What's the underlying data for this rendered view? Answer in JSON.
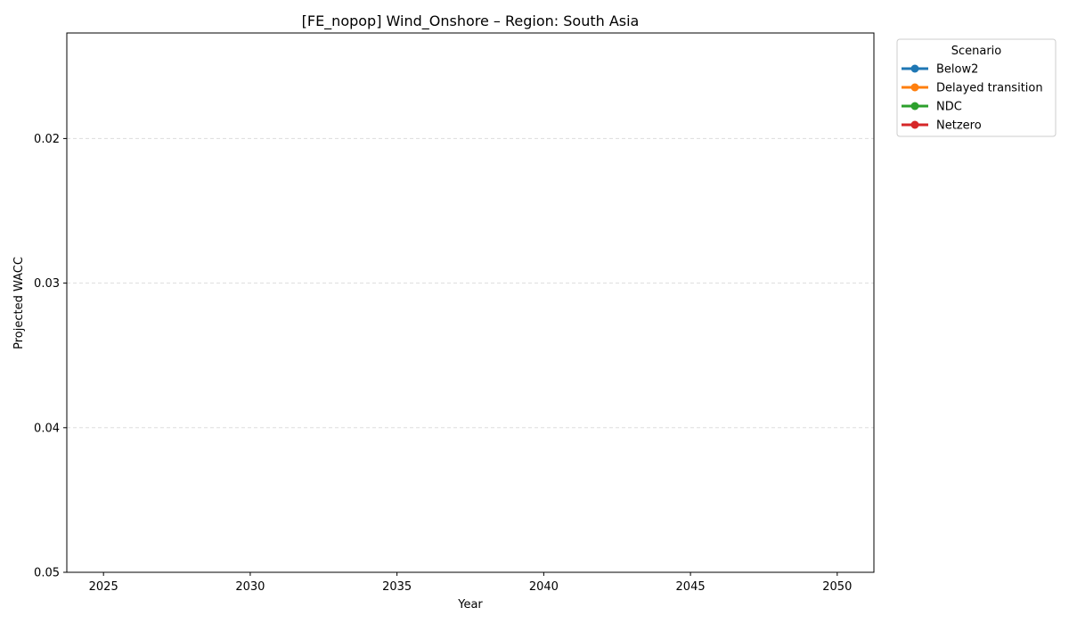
{
  "chart_data": {
    "type": "line",
    "title": "[FE_nopop] Wind_Onshore – Region: South Asia",
    "xlabel": "Year",
    "ylabel": "Projected WACC",
    "x_ticks": [
      "2025",
      "2030",
      "2035",
      "2040",
      "2045",
      "2050"
    ],
    "x_range": [
      2023.75,
      2051.25
    ],
    "y_ticks": [
      "0.02",
      "0.03",
      "0.04",
      "0.05"
    ],
    "y_range": [
      0.0127,
      0.05
    ],
    "y_inverted": true,
    "grid": "y-dashed",
    "legend": {
      "title": "Scenario",
      "placement": "outside-top-right",
      "entries": [
        {
          "name": "Below2",
          "color": "#1f77b4"
        },
        {
          "name": "Delayed transition",
          "color": "#ff7f0e"
        },
        {
          "name": "NDC",
          "color": "#2ca02c"
        },
        {
          "name": "Netzero",
          "color": "#d62728"
        }
      ]
    },
    "series": [
      {
        "name": "Below2",
        "x": [],
        "values": []
      },
      {
        "name": "Delayed transition",
        "x": [],
        "values": []
      },
      {
        "name": "NDC",
        "x": [],
        "values": []
      },
      {
        "name": "Netzero",
        "x": [],
        "values": []
      }
    ]
  }
}
